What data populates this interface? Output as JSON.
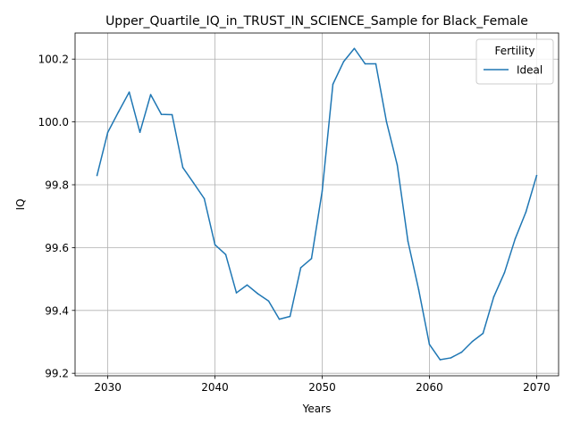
{
  "chart_data": {
    "type": "line",
    "title": "Upper_Quartile_IQ_in_TRUST_IN_SCIENCE_Sample for Black_Female",
    "xlabel": "Years",
    "ylabel": "IQ",
    "xlim": [
      2026.95,
      2072.05
    ],
    "ylim": [
      99.192,
      100.283
    ],
    "xticks": [
      2030,
      2040,
      2050,
      2060,
      2070
    ],
    "yticks": [
      99.2,
      99.4,
      99.6,
      99.8,
      100.0,
      100.2
    ],
    "xtick_labels": [
      "2030",
      "2040",
      "2050",
      "2060",
      "2070"
    ],
    "ytick_labels": [
      "99.2",
      "99.4",
      "99.6",
      "99.8",
      "100.0",
      "100.2"
    ],
    "grid": true,
    "legend": {
      "title": "Fertility",
      "placement": "top-right"
    },
    "series": [
      {
        "name": "Ideal",
        "color": "#1f77b4",
        "x": [
          2029,
          2030,
          2031,
          2032,
          2033,
          2034,
          2035,
          2036,
          2037,
          2038,
          2039,
          2040,
          2041,
          2042,
          2043,
          2044,
          2045,
          2046,
          2047,
          2048,
          2049,
          2050,
          2051,
          2052,
          2053,
          2054,
          2055,
          2056,
          2057,
          2058,
          2059,
          2060,
          2061,
          2062,
          2063,
          2064,
          2065,
          2066,
          2067,
          2068,
          2069,
          2070
        ],
        "y": [
          99.83,
          99.967,
          100.032,
          100.095,
          99.967,
          100.087,
          100.024,
          100.023,
          99.855,
          99.806,
          99.756,
          99.609,
          99.578,
          99.456,
          99.481,
          99.453,
          99.43,
          99.372,
          99.381,
          99.536,
          99.565,
          99.78,
          100.12,
          100.192,
          100.234,
          100.185,
          100.185,
          100.0,
          99.863,
          99.62,
          99.466,
          99.292,
          99.243,
          99.249,
          99.267,
          99.301,
          99.327,
          99.443,
          99.52,
          99.628,
          99.713,
          99.829
        ]
      }
    ]
  }
}
